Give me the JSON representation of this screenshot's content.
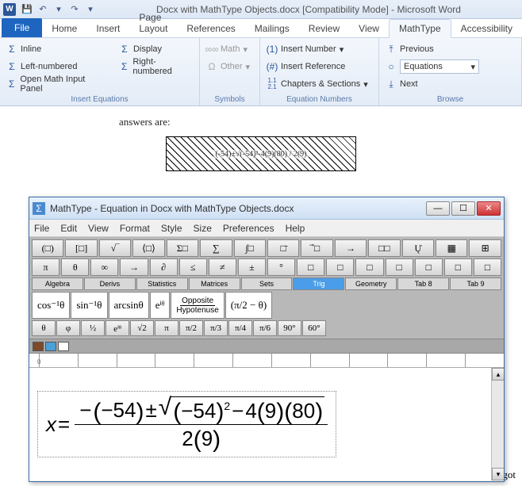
{
  "word": {
    "app_letter": "W",
    "title": "Docx with MathType Objects.docx [Compatibility Mode]  -  Microsoft Word",
    "qat": {
      "save": "💾",
      "undo": "↶",
      "redo": "↷"
    },
    "tabs": {
      "file": "File",
      "home": "Home",
      "insert": "Insert",
      "page_layout": "Page Layout",
      "references": "References",
      "mailings": "Mailings",
      "review": "Review",
      "view": "View",
      "mathtype": "MathType",
      "accessibility": "Accessibility"
    },
    "ribbon": {
      "insert_equations": {
        "label": "Insert Equations",
        "inline": "Inline",
        "display": "Display",
        "left_numbered": "Left-numbered",
        "right_numbered": "Right-numbered",
        "open_panel": "Open Math Input Panel",
        "sigma": "Σ"
      },
      "symbols": {
        "label": "Symbols",
        "math": "Math",
        "other": "Other",
        "inf": "∞∞",
        "omega": "Ω"
      },
      "equation_numbers": {
        "label": "Equation Numbers",
        "insert_number": "Insert Number",
        "insert_reference": "Insert Reference",
        "chapters_sections": "Chapters & Sections",
        "ico1": "(1)",
        "ico2": "(#)",
        "ico3": "1.1\n2.1"
      },
      "browse": {
        "label": "Browse",
        "previous": "Previous",
        "next": "Next",
        "equations_field": "Equations"
      }
    },
    "doc_snippet": "answers are:",
    "hatched_eq": "(-54)±√(-54)²-4(9)(80) / 2(9)",
    "trailing": "; we got"
  },
  "mathtype": {
    "icon": "Σ",
    "title": "MathType - Equation in Docx with MathType Objects.docx",
    "win": {
      "min": "—",
      "max": "☐",
      "close": "✕"
    },
    "menu": [
      "File",
      "Edit",
      "View",
      "Format",
      "Style",
      "Size",
      "Preferences",
      "Help"
    ],
    "toolbar_row1": [
      "(□)",
      "[□]",
      "√‾",
      "⟨□⟩",
      "Σ□",
      "∑",
      "∫□",
      "□̄",
      "⃗□",
      "→",
      "□□",
      "Ų̇",
      "▦",
      "⊞"
    ],
    "toolbar_row2": [
      "π",
      "θ",
      "∞",
      "→",
      "∂",
      "≤",
      "≠",
      "±",
      "°",
      "□",
      "□",
      "□",
      "□",
      "□",
      "□",
      "□"
    ],
    "tabs": [
      "Algebra",
      "Derivs",
      "Statistics",
      "Matrices",
      "Sets",
      "Trig",
      "Geometry",
      "Tab 8",
      "Tab 9"
    ],
    "active_tab_index": 5,
    "templates": [
      "cos⁻¹θ",
      "sin⁻¹θ",
      "arcsinθ",
      "eⁱᶿ",
      "Opposite\nHypotenuse",
      "(π/2 − θ)"
    ],
    "small_row": [
      "θ",
      "φ",
      "½",
      "eⁱᶿ",
      "√2",
      "π",
      "π/2",
      "π/3",
      "π/4",
      "π/6",
      "90°",
      "60°"
    ],
    "colors": [
      "#7b4a2a",
      "#4aa0d8",
      "#ffffff"
    ],
    "ruler_zero": "0",
    "equation": {
      "lhs": "x",
      "eq": "=",
      "num_a": "−",
      "num_b": "−54",
      "pm": "±",
      "rad_a": "−54",
      "rad_exp": "2",
      "rad_minus": "−",
      "rad_c": "4",
      "rad_d": "9",
      "rad_e": "80",
      "den_a": "2",
      "den_b": "9"
    }
  }
}
